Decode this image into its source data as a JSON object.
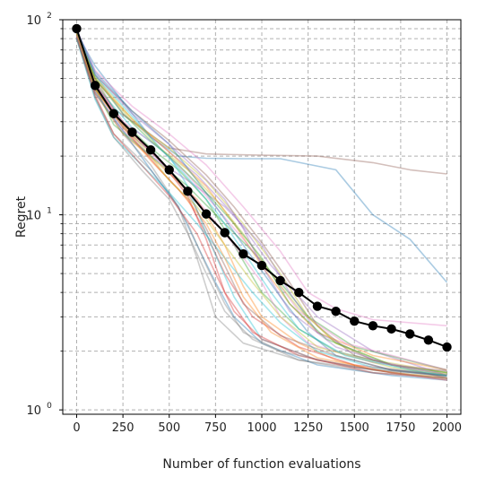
{
  "chart_data": {
    "type": "line",
    "xlabel": "Number of function evaluations",
    "ylabel": "Regret",
    "xlim": [
      -75,
      2075
    ],
    "ylim": [
      0.95,
      100
    ],
    "yscale": "log",
    "grid": true,
    "x_ticks": [
      0,
      250,
      500,
      750,
      1000,
      1250,
      1500,
      1750,
      2000
    ],
    "x_tick_labels": [
      "0",
      "250",
      "500",
      "750",
      "1000",
      "1250",
      "1500",
      "1750",
      "2000"
    ],
    "y_ticks": [
      1,
      10,
      100
    ],
    "y_tick_labels": [
      {
        "base": "10",
        "exp": "0"
      },
      {
        "base": "10",
        "exp": "1"
      },
      {
        "base": "10",
        "exp": "2"
      }
    ],
    "mean_series": {
      "color": "#000000",
      "x": [
        0,
        100,
        200,
        300,
        400,
        500,
        600,
        700,
        800,
        900,
        1000,
        1100,
        1200,
        1300,
        1400,
        1500,
        1600,
        1700,
        1800,
        1900,
        2000
      ],
      "y": [
        90,
        46,
        33,
        26.5,
        21.5,
        17,
        13.2,
        10.1,
        8.1,
        6.3,
        5.5,
        4.6,
        4.0,
        3.4,
        3.2,
        2.85,
        2.7,
        2.6,
        2.45,
        2.28,
        2.1
      ]
    },
    "run_series": [
      {
        "color": "#1f77b4",
        "x": [
          0,
          100,
          250,
          400,
          550,
          700,
          900,
          1100,
          1400,
          1600,
          1800,
          2000
        ],
        "y": [
          85,
          58,
          38,
          25,
          20,
          19.5,
          19.4,
          19.4,
          17,
          10,
          7.5,
          4.5
        ]
      },
      {
        "color": "#8c564b",
        "x": [
          0,
          100,
          200,
          350,
          500,
          700,
          1000,
          1300,
          1600,
          1800,
          2000
        ],
        "y": [
          88,
          50,
          35,
          28,
          22,
          20.5,
          20.2,
          20,
          18.5,
          17,
          16.2
        ]
      },
      {
        "color": "#ff7f0e",
        "x": [
          0,
          100,
          250,
          450,
          650,
          800,
          900,
          1000,
          1200,
          1400,
          1600,
          1800,
          2000
        ],
        "y": [
          80,
          42,
          26,
          18,
          12,
          7,
          4.3,
          3,
          2.2,
          1.8,
          1.6,
          1.52,
          1.48
        ]
      },
      {
        "color": "#2ca02c",
        "x": [
          0,
          100,
          250,
          400,
          550,
          700,
          850,
          1000,
          1200,
          1400,
          1700,
          2000
        ],
        "y": [
          82,
          48,
          30,
          22,
          17,
          12,
          7,
          4,
          2.6,
          2,
          1.7,
          1.58
        ]
      },
      {
        "color": "#d62728",
        "x": [
          0,
          100,
          300,
          450,
          600,
          700,
          800,
          950,
          1200,
          1500,
          2000
        ],
        "y": [
          84,
          44,
          25,
          17,
          12,
          8,
          5,
          3,
          2.1,
          1.7,
          1.5
        ]
      },
      {
        "color": "#9467bd",
        "x": [
          0,
          100,
          250,
          450,
          650,
          850,
          1050,
          1300,
          1600,
          2000
        ],
        "y": [
          86,
          52,
          33,
          23,
          16,
          10,
          5.5,
          3,
          2,
          1.5
        ]
      },
      {
        "color": "#e377c2",
        "x": [
          0,
          100,
          300,
          500,
          700,
          900,
          1100,
          1250,
          1400,
          1600,
          2000
        ],
        "y": [
          89,
          55,
          36,
          26,
          18,
          11,
          6.5,
          4,
          3.3,
          2.9,
          2.7
        ]
      },
      {
        "color": "#7f7f7f",
        "x": [
          0,
          100,
          200,
          400,
          550,
          650,
          750,
          900,
          1200,
          1600,
          2000
        ],
        "y": [
          80,
          40,
          26,
          17,
          11,
          6,
          3,
          2.2,
          1.8,
          1.6,
          1.5
        ]
      },
      {
        "color": "#bcbd22",
        "x": [
          0,
          100,
          300,
          500,
          700,
          900,
          1100,
          1250,
          1400,
          1600,
          2000
        ],
        "y": [
          87,
          50,
          30,
          22,
          15,
          9,
          5,
          3,
          2.2,
          1.8,
          1.55
        ]
      },
      {
        "color": "#17becf",
        "x": [
          0,
          100,
          300,
          500,
          600,
          700,
          850,
          1000,
          1300,
          1700,
          2000
        ],
        "y": [
          83,
          46,
          28,
          20,
          14,
          8,
          3.8,
          2.3,
          1.8,
          1.55,
          1.45
        ]
      },
      {
        "color": "#1f77b4",
        "x": [
          0,
          100,
          250,
          400,
          550,
          650,
          750,
          850,
          1000,
          1300,
          1700,
          2000
        ],
        "y": [
          81,
          42,
          27,
          17,
          11,
          7,
          4.5,
          3,
          2.2,
          1.7,
          1.5,
          1.42
        ]
      },
      {
        "color": "#ff7f0e",
        "x": [
          0,
          100,
          300,
          500,
          700,
          850,
          1000,
          1150,
          1300,
          1600,
          2000
        ],
        "y": [
          88,
          49,
          31,
          21,
          14,
          9,
          5.5,
          3.5,
          2.5,
          1.9,
          1.6
        ]
      },
      {
        "color": "#2ca02c",
        "x": [
          0,
          100,
          200,
          400,
          600,
          800,
          950,
          1100,
          1250,
          1500,
          2000
        ],
        "y": [
          84,
          45,
          29,
          20,
          14,
          9,
          6.5,
          4.5,
          3,
          2.1,
          1.6
        ]
      },
      {
        "color": "#d62728",
        "x": [
          0,
          100,
          250,
          450,
          600,
          700,
          800,
          950,
          1200,
          1600,
          2000
        ],
        "y": [
          86,
          47,
          29,
          19,
          12.5,
          7.5,
          4,
          2.5,
          1.9,
          1.55,
          1.45
        ]
      },
      {
        "color": "#9467bd",
        "x": [
          0,
          100,
          250,
          400,
          600,
          800,
          1000,
          1150,
          1300,
          1600,
          2000
        ],
        "y": [
          82,
          43,
          27,
          20,
          15,
          11,
          7,
          4,
          2.5,
          1.8,
          1.5
        ]
      },
      {
        "color": "#8c564b",
        "x": [
          0,
          100,
          300,
          500,
          700,
          850,
          1000,
          1150,
          1300,
          1500,
          2000
        ],
        "y": [
          87,
          52,
          34,
          24,
          16,
          11,
          7.2,
          4.5,
          2.7,
          1.9,
          1.45
        ]
      },
      {
        "color": "#e377c2",
        "x": [
          0,
          100,
          250,
          450,
          600,
          750,
          900,
          1050,
          1200,
          1450,
          2000
        ],
        "y": [
          85,
          46,
          30,
          22,
          16,
          11,
          7.5,
          5,
          3.2,
          2.2,
          1.6
        ]
      },
      {
        "color": "#7f7f7f",
        "x": [
          0,
          100,
          250,
          400,
          500,
          600,
          700,
          800,
          900,
          1100,
          1500,
          2000
        ],
        "y": [
          83,
          43,
          26,
          18,
          13,
          9,
          5.5,
          3.5,
          2.5,
          2,
          1.65,
          1.5
        ]
      },
      {
        "color": "#bcbd22",
        "x": [
          0,
          100,
          300,
          450,
          600,
          750,
          900,
          1050,
          1200,
          1400,
          1700,
          2000
        ],
        "y": [
          88,
          51,
          31,
          22,
          17,
          12,
          8,
          5,
          3.3,
          2.2,
          1.7,
          1.55
        ]
      },
      {
        "color": "#17becf",
        "x": [
          0,
          100,
          200,
          350,
          500,
          650,
          800,
          950,
          1100,
          1300,
          1600,
          2000
        ],
        "y": [
          80,
          39,
          25,
          18,
          13,
          9,
          6,
          4,
          2.8,
          2,
          1.65,
          1.5
        ]
      },
      {
        "color": "#1f77b4",
        "x": [
          0,
          100,
          300,
          500,
          650,
          800,
          950,
          1100,
          1250,
          1400,
          1700,
          2000
        ],
        "y": [
          89,
          54,
          34,
          23,
          15,
          9.5,
          6,
          3.8,
          2.5,
          1.9,
          1.6,
          1.48
        ]
      },
      {
        "color": "#ff7f0e",
        "x": [
          0,
          100,
          250,
          400,
          550,
          700,
          800,
          900,
          1050,
          1300,
          1700,
          2000
        ],
        "y": [
          84,
          44,
          28,
          19,
          13.5,
          9,
          6,
          3.8,
          2.5,
          1.85,
          1.55,
          1.45
        ]
      },
      {
        "color": "#2ca02c",
        "x": [
          0,
          100,
          250,
          400,
          550,
          700,
          850,
          1000,
          1150,
          1350,
          1700,
          2000
        ],
        "y": [
          86,
          50,
          33,
          24,
          18,
          13,
          9,
          6,
          3.5,
          2.3,
          1.7,
          1.55
        ]
      },
      {
        "color": "#d62728",
        "x": [
          0,
          100,
          200,
          350,
          500,
          650,
          750,
          850,
          1000,
          1300,
          1700,
          2000
        ],
        "y": [
          82,
          41,
          26,
          18,
          12.5,
          8,
          5,
          3.2,
          2.3,
          1.8,
          1.55,
          1.42
        ]
      },
      {
        "color": "#9467bd",
        "x": [
          0,
          100,
          300,
          500,
          650,
          800,
          900,
          1000,
          1150,
          1400,
          1700,
          2000
        ],
        "y": [
          87,
          53,
          33,
          23,
          17,
          12,
          8.5,
          5.5,
          3.2,
          2.1,
          1.7,
          1.52
        ]
      },
      {
        "color": "#8c564b",
        "x": [
          0,
          100,
          250,
          450,
          600,
          700,
          800,
          900,
          1100,
          1400,
          1700,
          2000
        ],
        "y": [
          85,
          45,
          28,
          19,
          13,
          8.5,
          5.5,
          3.5,
          2.4,
          1.9,
          1.6,
          1.5
        ]
      },
      {
        "color": "#e377c2",
        "x": [
          0,
          100,
          250,
          400,
          550,
          700,
          850,
          1000,
          1100,
          1250,
          1600,
          2000
        ],
        "y": [
          83,
          47,
          30,
          21,
          15,
          10.5,
          7,
          4.5,
          3,
          2.2,
          1.75,
          1.58
        ]
      },
      {
        "color": "#bcbd22",
        "x": [
          0,
          100,
          250,
          400,
          500,
          650,
          800,
          950,
          1100,
          1300,
          1700,
          2000
        ],
        "y": [
          85,
          44,
          29,
          20,
          15,
          11,
          7,
          4.5,
          3,
          2.1,
          1.65,
          1.52
        ]
      },
      {
        "color": "#17becf",
        "x": [
          0,
          100,
          300,
          450,
          600,
          750,
          900,
          1050,
          1200,
          1450,
          1800,
          2000
        ],
        "y": [
          88,
          52,
          32,
          22,
          15.5,
          10.5,
          6.5,
          4,
          2.6,
          1.9,
          1.6,
          1.5
        ]
      },
      {
        "color": "#7f7f7f",
        "x": [
          0,
          100,
          200,
          350,
          500,
          600,
          700,
          800,
          950,
          1200,
          1600,
          2000
        ],
        "y": [
          81,
          40,
          25,
          17,
          12,
          8,
          5,
          3.2,
          2.3,
          1.8,
          1.55,
          1.45
        ]
      }
    ]
  }
}
